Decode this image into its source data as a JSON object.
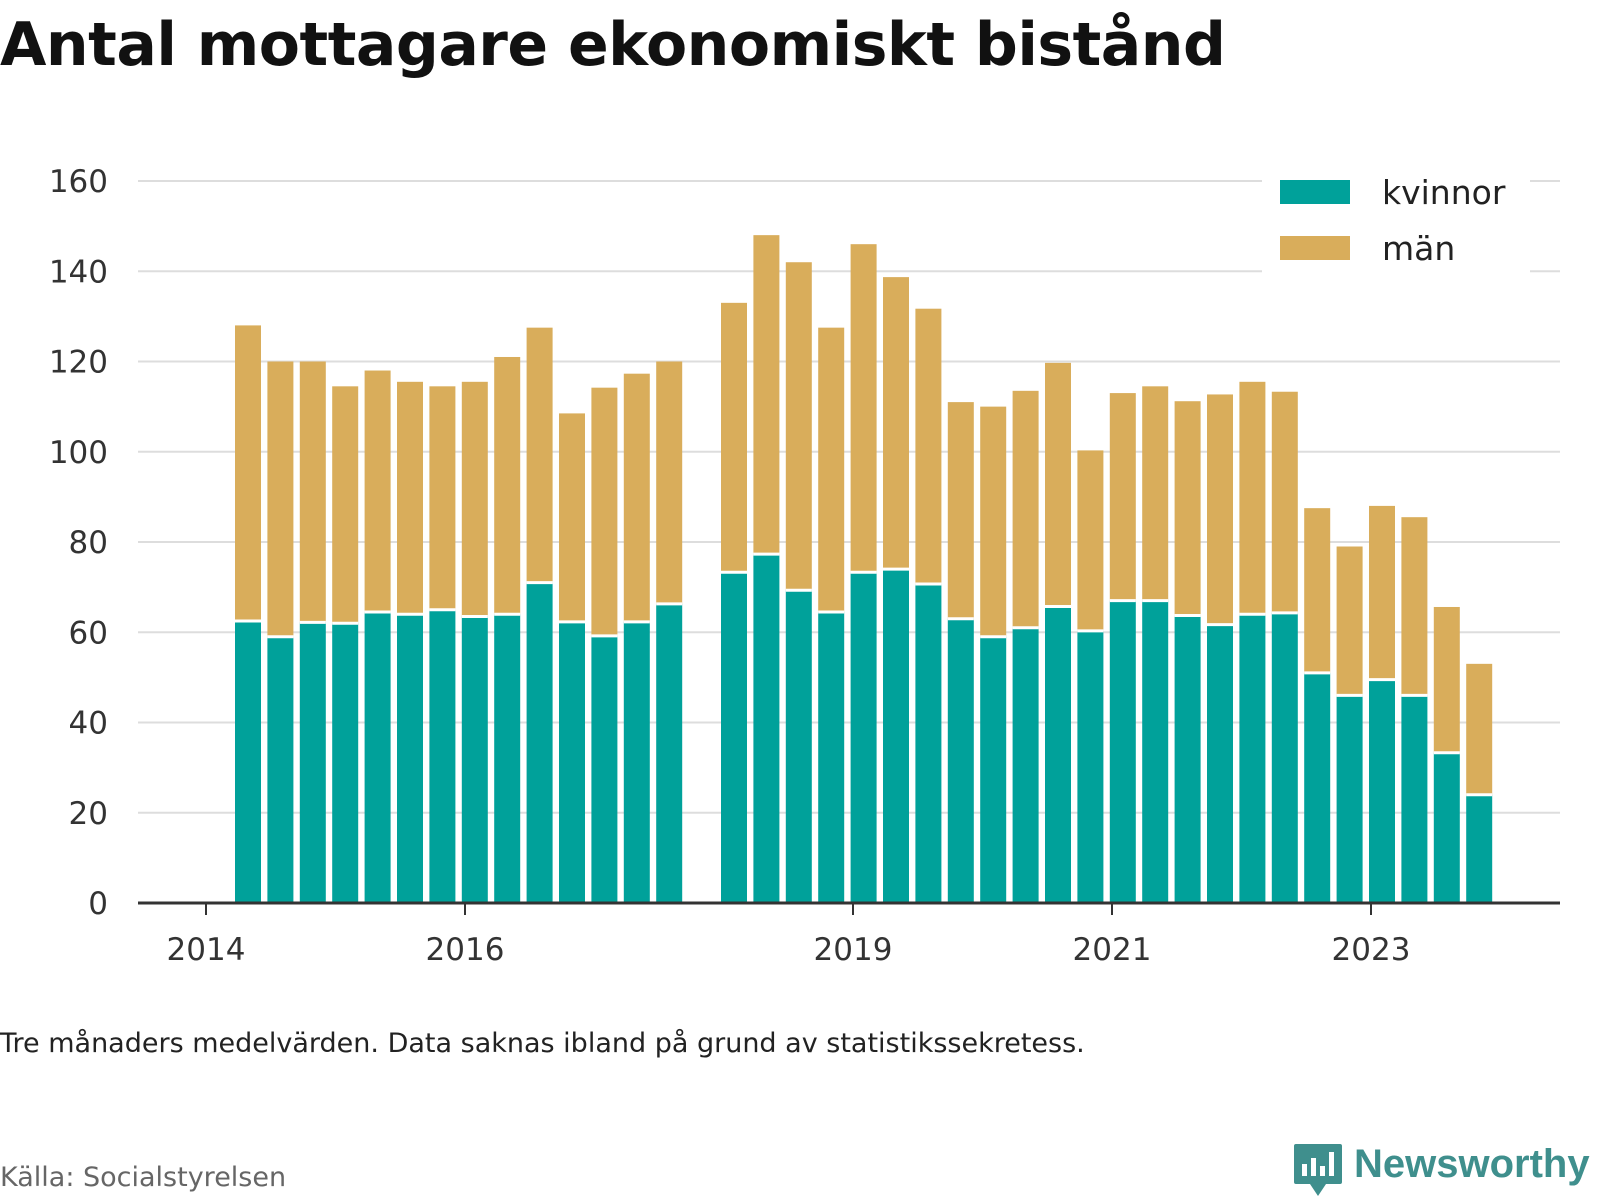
{
  "title": "Antal mottagare ekonomiskt bistånd",
  "note": "Tre månaders medelvärden. Data saknas ibland på grund av statistikssekretess.",
  "source": "Källa: Socialstyrelsen",
  "brand": "Newsworthy",
  "colors": {
    "kvinnor": "#00a19a",
    "man": "#d9ad5b",
    "grid": "#dddddd",
    "axis": "#333333",
    "brand": "#3f8f8d"
  },
  "chart_data": {
    "type": "bar",
    "stacked": true,
    "ylim": [
      0,
      160
    ],
    "yticks": [
      0,
      20,
      40,
      60,
      80,
      100,
      120,
      140,
      160
    ],
    "xtick_labels": [
      "2014",
      "2016",
      "2019",
      "2021",
      "2023"
    ],
    "legend_position": "top-right",
    "grid": true,
    "series": [
      {
        "name": "kvinnor",
        "values": [
          62.5,
          59,
          62.2,
          62,
          64.5,
          64,
          65,
          63.5,
          64,
          71,
          62.3,
          59.2,
          62.3,
          66.3,
          null,
          73.3,
          77.3,
          69.3,
          64.5,
          73.3,
          74,
          70.7,
          63,
          59,
          61,
          65.7,
          60.3,
          67,
          67,
          63.7,
          61.7,
          64,
          64.3,
          51,
          46,
          49.5,
          46,
          33.3,
          24
        ]
      },
      {
        "name": "män",
        "values": [
          65.5,
          61,
          57.8,
          52.5,
          53.5,
          51.5,
          49.5,
          52,
          57,
          56.5,
          46.2,
          55,
          55,
          53.7,
          null,
          59.7,
          70.7,
          72.7,
          63,
          72.7,
          64.7,
          61,
          48,
          51,
          52.5,
          54,
          40,
          46,
          47.5,
          47.5,
          51,
          51.5,
          49,
          36.5,
          33,
          38.5,
          39.5,
          32.3,
          29
        ]
      }
    ]
  }
}
